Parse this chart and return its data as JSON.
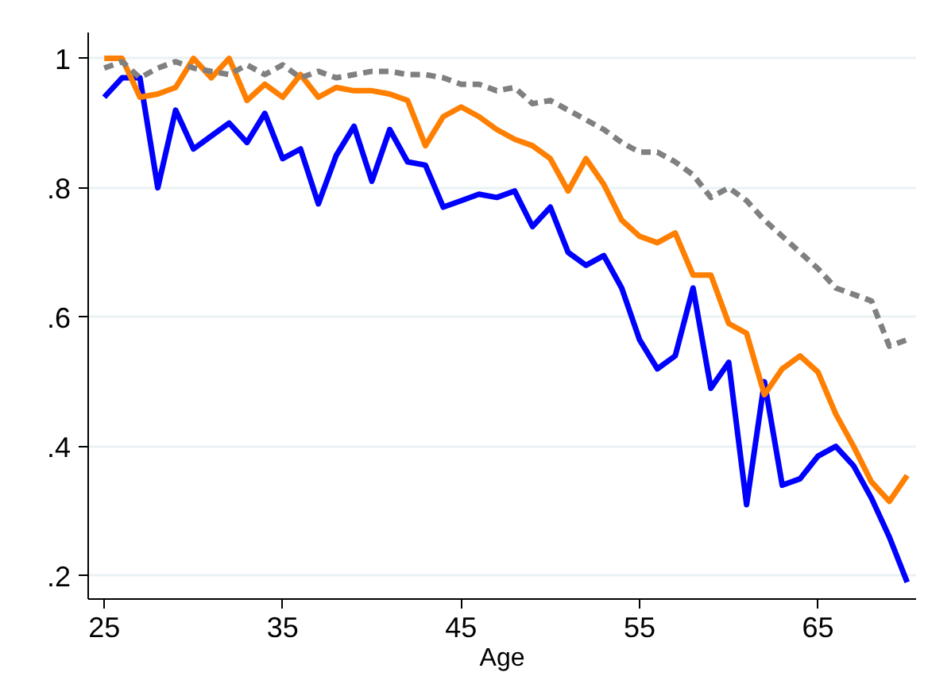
{
  "chart_data": {
    "type": "line",
    "xlabel": "Age",
    "x": [
      25,
      26,
      27,
      28,
      29,
      30,
      31,
      32,
      33,
      34,
      35,
      36,
      37,
      38,
      39,
      40,
      41,
      42,
      43,
      44,
      45,
      46,
      47,
      48,
      49,
      50,
      51,
      52,
      53,
      54,
      55,
      56,
      57,
      58,
      59,
      60,
      61,
      62,
      63,
      64,
      65,
      66,
      67,
      68,
      69,
      70
    ],
    "series": [
      {
        "color": "#0000ff",
        "line_style": "solid",
        "values": [
          0.94,
          0.97,
          0.97,
          0.8,
          0.92,
          0.86,
          0.88,
          0.9,
          0.87,
          0.915,
          0.845,
          0.86,
          0.775,
          0.85,
          0.895,
          0.81,
          0.89,
          0.84,
          0.835,
          0.77,
          0.78,
          0.79,
          0.785,
          0.795,
          0.74,
          0.77,
          0.7,
          0.68,
          0.695,
          0.645,
          0.565,
          0.52,
          0.54,
          0.645,
          0.49,
          0.53,
          0.31,
          0.5,
          0.34,
          0.35,
          0.385,
          0.4,
          0.37,
          0.32,
          0.26,
          0.19
        ]
      },
      {
        "color": "#ff7f00",
        "line_style": "solid",
        "values": [
          1.0,
          1.0,
          0.94,
          0.945,
          0.955,
          1.0,
          0.97,
          1.0,
          0.935,
          0.96,
          0.94,
          0.975,
          0.94,
          0.955,
          0.95,
          0.95,
          0.945,
          0.935,
          0.865,
          0.91,
          0.925,
          0.91,
          0.89,
          0.875,
          0.865,
          0.845,
          0.795,
          0.845,
          0.805,
          0.75,
          0.725,
          0.715,
          0.73,
          0.665,
          0.665,
          0.59,
          0.575,
          0.48,
          0.52,
          0.54,
          0.515,
          0.45,
          0.4,
          0.345,
          0.315,
          0.355
        ]
      },
      {
        "color": "#808080",
        "line_style": "dashed",
        "values": [
          0.985,
          0.995,
          0.97,
          0.985,
          0.995,
          0.985,
          0.98,
          0.975,
          0.99,
          0.975,
          0.99,
          0.97,
          0.98,
          0.97,
          0.975,
          0.98,
          0.98,
          0.975,
          0.975,
          0.97,
          0.96,
          0.96,
          0.95,
          0.955,
          0.93,
          0.935,
          0.92,
          0.905,
          0.89,
          0.87,
          0.855,
          0.855,
          0.84,
          0.82,
          0.785,
          0.8,
          0.78,
          0.75,
          0.725,
          0.7,
          0.675,
          0.645,
          0.635,
          0.625,
          0.555,
          0.565
        ]
      }
    ],
    "xlim": [
      24.1,
      70.5
    ],
    "ylim": [
      0.164,
      1.04
    ],
    "xticks": [
      25,
      35,
      45,
      55,
      65
    ],
    "yticks": [
      {
        "value": 0.2,
        "label": ".2"
      },
      {
        "value": 0.4,
        "label": ".4"
      },
      {
        "value": 0.6,
        "label": ".6"
      },
      {
        "value": 0.8,
        "label": ".8"
      },
      {
        "value": 1,
        "label": "1"
      }
    ],
    "grid": "y"
  }
}
